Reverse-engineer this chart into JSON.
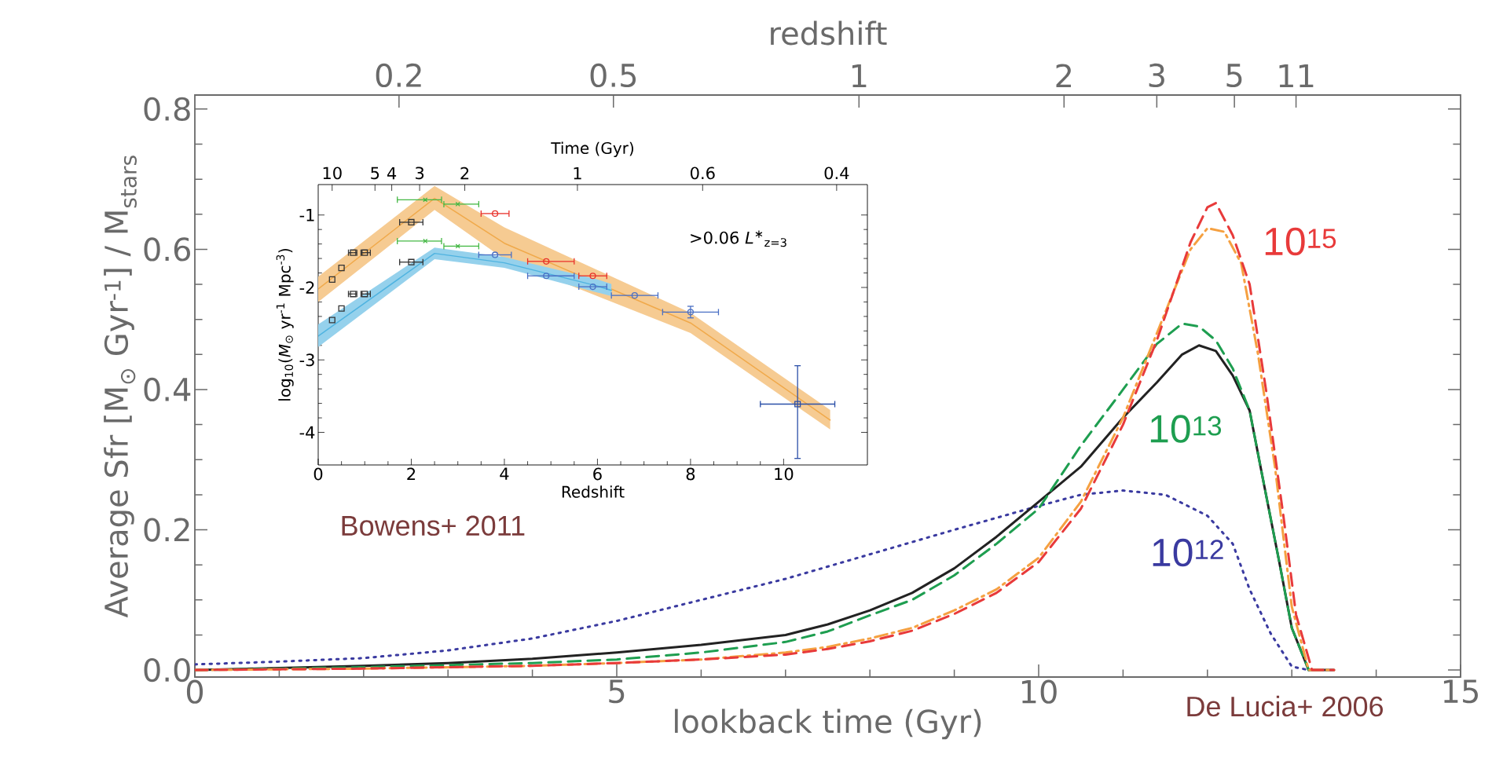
{
  "chart_data": [
    {
      "type": "line",
      "xlabel": "lookback time (Gyr)",
      "ylabel": "Average Sfr [M$_{⊙}$ Gyr$^{-1}$] / M$_{stars}$",
      "x2label": "redshift",
      "xlim": [
        0,
        15
      ],
      "ylim": [
        -0.01,
        0.82
      ],
      "xticks": [
        0,
        5,
        10,
        15
      ],
      "yticks": [
        {
          "value": 0,
          "label": "0.0"
        },
        0.2,
        0.4,
        0.6,
        0.8
      ],
      "annotations": [
        "Bowens+ 2011",
        "De Lucia+ 2006",
        "0.2",
        "0.5",
        "1",
        "2",
        "3",
        "5",
        "11"
      ],
      "series": [
        {
          "name": "10$^{12}$",
          "color": "#3a3aa0",
          "line_style": "dotted",
          "x": [
            0,
            1,
            2,
            3,
            4,
            5,
            6,
            7,
            8,
            9,
            10,
            10.5,
            11,
            11.5,
            12,
            12.3,
            12.5,
            12.75,
            13,
            13.2
          ],
          "values": [
            0.008,
            0.012,
            0.017,
            0.028,
            0.045,
            0.07,
            0.1,
            0.13,
            0.165,
            0.2,
            0.234,
            0.25,
            0.256,
            0.25,
            0.22,
            0.18,
            0.115,
            0.052,
            0.005,
            0
          ]
        },
        {
          "color": "#222222",
          "line_style": "solid",
          "x": [
            0,
            1,
            2,
            3,
            4,
            5,
            6,
            7,
            7.5,
            8,
            8.5,
            9,
            9.5,
            10,
            10.5,
            11,
            11.4,
            11.7,
            11.9,
            12.1,
            12.3,
            12.5,
            12.65,
            12.85,
            13,
            13.2,
            13.5
          ],
          "values": [
            0,
            0.003,
            0.006,
            0.01,
            0.016,
            0.025,
            0.036,
            0.05,
            0.065,
            0.085,
            0.11,
            0.145,
            0.19,
            0.24,
            0.29,
            0.36,
            0.41,
            0.45,
            0.463,
            0.455,
            0.42,
            0.37,
            0.277,
            0.155,
            0.06,
            0,
            0
          ]
        },
        {
          "name": "10$^{13}$",
          "color": "#1e9e50",
          "line_style": "dashed",
          "x": [
            0,
            2,
            4,
            5,
            6,
            7,
            7.5,
            8,
            8.5,
            9,
            9.5,
            10,
            10.5,
            11,
            11.4,
            11.7,
            11.9,
            12.1,
            12.3,
            12.5,
            12.65,
            12.85,
            13,
            13.2
          ],
          "values": [
            0,
            0.004,
            0.01,
            0.015,
            0.025,
            0.04,
            0.055,
            0.078,
            0.1,
            0.135,
            0.18,
            0.23,
            0.32,
            0.4,
            0.465,
            0.494,
            0.49,
            0.47,
            0.43,
            0.37,
            0.277,
            0.155,
            0.06,
            0
          ]
        },
        {
          "color": "#f5a040",
          "line_style": "dashdot",
          "x": [
            0,
            2,
            4,
            5,
            6,
            7,
            7.5,
            8,
            8.5,
            9,
            9.5,
            10,
            10.5,
            11,
            11.4,
            11.8,
            12,
            12.2,
            12.4,
            12.6,
            12.8,
            13,
            13.2,
            13.5
          ],
          "values": [
            0,
            0.002,
            0.006,
            0.01,
            0.015,
            0.025,
            0.033,
            0.045,
            0.06,
            0.085,
            0.115,
            0.16,
            0.24,
            0.36,
            0.48,
            0.6,
            0.63,
            0.625,
            0.58,
            0.45,
            0.29,
            0.09,
            0,
            0
          ]
        },
        {
          "name": "10$^{15}$",
          "color": "#e83a3a",
          "line_style": "dashed",
          "x": [
            0,
            2,
            4,
            5,
            6,
            7,
            7.5,
            8,
            8.5,
            9,
            9.5,
            10,
            10.5,
            11,
            11.4,
            11.8,
            12,
            12.1,
            12.3,
            12.5,
            12.7,
            12.9,
            13.05,
            13.24,
            13.5
          ],
          "values": [
            0,
            0.002,
            0.006,
            0.01,
            0.015,
            0.022,
            0.03,
            0.041,
            0.056,
            0.08,
            0.11,
            0.154,
            0.23,
            0.35,
            0.47,
            0.61,
            0.66,
            0.666,
            0.62,
            0.55,
            0.395,
            0.22,
            0.079,
            0,
            0
          ]
        }
      ]
    },
    {
      "type": "scatter",
      "xlabel": "Redshift",
      "ylabel": "log$_{10}$(*M*$_{⊙}$ yr$^{-1}$ Mpc$^{-3}$)",
      "x2label": "Time (Gyr)",
      "xlim": [
        0,
        11.8
      ],
      "ylim": [
        -4.45,
        -0.58
      ],
      "xticks": [
        0,
        2,
        4,
        6,
        8,
        10
      ],
      "yticks": [
        -4,
        -3,
        -2,
        -1
      ],
      "annotations": [
        ">0.06 *L*$^{∗}$$_{z=3}$",
        "10",
        "5",
        "4",
        "3",
        "2",
        "1",
        "0.6",
        "0.4"
      ],
      "series": [
        {
          "type": "line",
          "color": "#f0a94a",
          "x": [
            0,
            2.5,
            4,
            8,
            11
          ],
          "values": [
            -2.02,
            -0.77,
            -1.39,
            -2.49,
            -3.83
          ],
          "lower": [
            -2.2,
            -0.93,
            -1.61,
            -2.63,
            -3.96
          ],
          "upper": [
            -1.85,
            -0.6,
            -1.17,
            -2.35,
            -3.69
          ]
        },
        {
          "type": "line",
          "color": "#4fb3e0",
          "x": [
            0,
            2.5,
            4,
            6,
            6.3
          ],
          "values": [
            -2.67,
            -1.53,
            -1.66,
            -1.98,
            -2.04
          ],
          "lower": [
            -2.82,
            -1.61,
            -1.73,
            -2.07,
            -2.12
          ],
          "upper": [
            -2.51,
            -1.45,
            -1.58,
            -1.89,
            -1.95
          ]
        },
        {
          "color": "#333333",
          "marker": "square",
          "x": [
            0.3,
            0.5,
            0.75,
            1.0,
            2.0,
            0.3,
            0.5,
            0.75,
            1.0,
            2.0
          ],
          "values": [
            -1.89,
            -1.73,
            -1.52,
            -1.52,
            -1.1,
            -2.45,
            -2.29,
            -2.09,
            -2.09,
            -1.65
          ],
          "xerrors": [
            null,
            null,
            [
              0.65,
              0.83
            ],
            [
              0.92,
              1.12
            ],
            [
              1.75,
              2.25
            ],
            null,
            null,
            [
              0.65,
              0.83
            ],
            [
              0.92,
              1.12
            ],
            [
              1.75,
              2.25
            ]
          ]
        },
        {
          "color": "#44b844",
          "marker": "cross",
          "x": [
            2.3,
            3.0,
            2.3,
            3.0
          ],
          "values": [
            -0.79,
            -0.85,
            -1.36,
            -1.43
          ],
          "xerrors": [
            [
              1.7,
              2.65
            ],
            [
              2.7,
              3.45
            ],
            [
              1.7,
              2.65
            ],
            [
              2.7,
              3.45
            ]
          ]
        },
        {
          "color": "#e8312a",
          "marker": "circle",
          "x": [
            3.8,
            4.9,
            5.9
          ],
          "values": [
            -0.98,
            -1.64,
            -1.84
          ],
          "xerrors": [
            [
              3.5,
              4.1
            ],
            [
              4.5,
              5.5
            ],
            [
              5.6,
              6.2
            ]
          ]
        },
        {
          "color": "#4a6fc4",
          "marker": "circle",
          "x": [
            3.8,
            4.9,
            5.9,
            6.8,
            8.0
          ],
          "values": [
            -1.55,
            -1.84,
            -1.99,
            -2.11,
            -2.34
          ],
          "xerrors": [
            [
              3.45,
              4.15
            ],
            [
              4.5,
              5.5
            ],
            [
              5.6,
              6.2
            ],
            [
              6.3,
              7.3
            ],
            [
              7.4,
              8.6
            ]
          ],
          "errors": [
            null,
            null,
            null,
            null,
            [
              -2.42,
              -2.26
            ]
          ]
        },
        {
          "color": "#2b4fa8",
          "marker": "square",
          "x": [
            10.3
          ],
          "values": [
            -3.61
          ],
          "xerrors": [
            [
              9.5,
              11.1
            ]
          ],
          "errors": [
            [
              -4.36,
              -3.08
            ]
          ]
        }
      ]
    }
  ]
}
